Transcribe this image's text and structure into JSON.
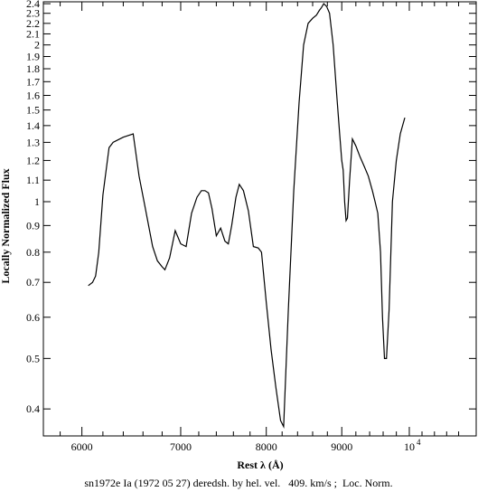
{
  "chart_data": {
    "type": "line",
    "xlabel": "Rest λ (Å)",
    "ylabel": "Locally Normalized Flux",
    "caption": "sn1972e Ia (1972 05 27) deredsh. by hel. vel.   409. km/s ;  Loc. Norm.",
    "x_scale": "log",
    "y_scale": "log",
    "xlim": [
      5650,
      11100
    ],
    "ylim": [
      0.355,
      2.42
    ],
    "x_ticks": [
      {
        "value": 6000,
        "label": "6000"
      },
      {
        "value": 7000,
        "label": "7000"
      },
      {
        "value": 8000,
        "label": "8000"
      },
      {
        "value": 9000,
        "label": "9000"
      },
      {
        "value": 10000,
        "label": "10",
        "sup": "4"
      }
    ],
    "y_ticks": [
      {
        "value": 0.4,
        "label": "0.4"
      },
      {
        "value": 0.5,
        "label": "0.5"
      },
      {
        "value": 0.6,
        "label": "0.6"
      },
      {
        "value": 0.7,
        "label": "0.7"
      },
      {
        "value": 0.8,
        "label": "0.8"
      },
      {
        "value": 0.9,
        "label": "0.9"
      },
      {
        "value": 1.0,
        "label": "1"
      },
      {
        "value": 1.1,
        "label": "1.1"
      },
      {
        "value": 1.2,
        "label": "1.2"
      },
      {
        "value": 1.3,
        "label": "1.3"
      },
      {
        "value": 1.4,
        "label": "1.4"
      },
      {
        "value": 1.5,
        "label": "1.5"
      },
      {
        "value": 1.6,
        "label": "1.6"
      },
      {
        "value": 1.7,
        "label": "1.7"
      },
      {
        "value": 1.8,
        "label": "1.8"
      },
      {
        "value": 1.9,
        "label": "1.9"
      },
      {
        "value": 2.0,
        "label": "2"
      },
      {
        "value": 2.1,
        "label": "2.1"
      },
      {
        "value": 2.2,
        "label": "2.2"
      },
      {
        "value": 2.3,
        "label": "2.3"
      },
      {
        "value": 2.4,
        "label": "2.4"
      }
    ],
    "series": [
      {
        "x": [
          6060,
          6100,
          6130,
          6160,
          6200,
          6260,
          6300,
          6400,
          6500,
          6560,
          6620,
          6700,
          6750,
          6800,
          6830,
          6880,
          6940,
          7000,
          7060,
          7120,
          7180,
          7230,
          7270,
          7310,
          7350,
          7400,
          7450,
          7500,
          7540,
          7580,
          7630,
          7670,
          7720,
          7780,
          7840,
          7900,
          7940,
          8000,
          8060,
          8120,
          8180,
          8220,
          8280,
          8350,
          8420,
          8480,
          8540,
          8600,
          8650,
          8690,
          8720,
          8750,
          8790,
          8830,
          8880,
          8930,
          8970,
          9000,
          9020,
          9040,
          9060,
          9080,
          9110,
          9150,
          9200,
          9260,
          9320,
          9380,
          9440,
          9480,
          9520,
          9560,
          9590,
          9620,
          9650,
          9690,
          9740,
          9800,
          9860,
          9930
        ],
        "y": [
          0.69,
          0.7,
          0.72,
          0.8,
          1.03,
          1.27,
          1.3,
          1.33,
          1.35,
          1.12,
          0.98,
          0.82,
          0.77,
          0.75,
          0.74,
          0.78,
          0.88,
          0.83,
          0.82,
          0.95,
          1.02,
          1.05,
          1.05,
          1.04,
          0.97,
          0.86,
          0.89,
          0.84,
          0.83,
          0.9,
          1.02,
          1.08,
          1.05,
          0.96,
          0.82,
          0.815,
          0.8,
          0.64,
          0.52,
          0.44,
          0.38,
          0.37,
          0.62,
          1.05,
          1.55,
          2.0,
          2.2,
          2.25,
          2.28,
          2.33,
          2.36,
          2.4,
          2.37,
          2.3,
          2.0,
          1.6,
          1.35,
          1.2,
          1.15,
          1.0,
          0.92,
          0.93,
          1.1,
          1.32,
          1.28,
          1.22,
          1.17,
          1.12,
          1.05,
          1.0,
          0.95,
          0.8,
          0.6,
          0.5,
          0.5,
          0.62,
          1.0,
          1.2,
          1.35,
          1.45
        ]
      }
    ]
  }
}
